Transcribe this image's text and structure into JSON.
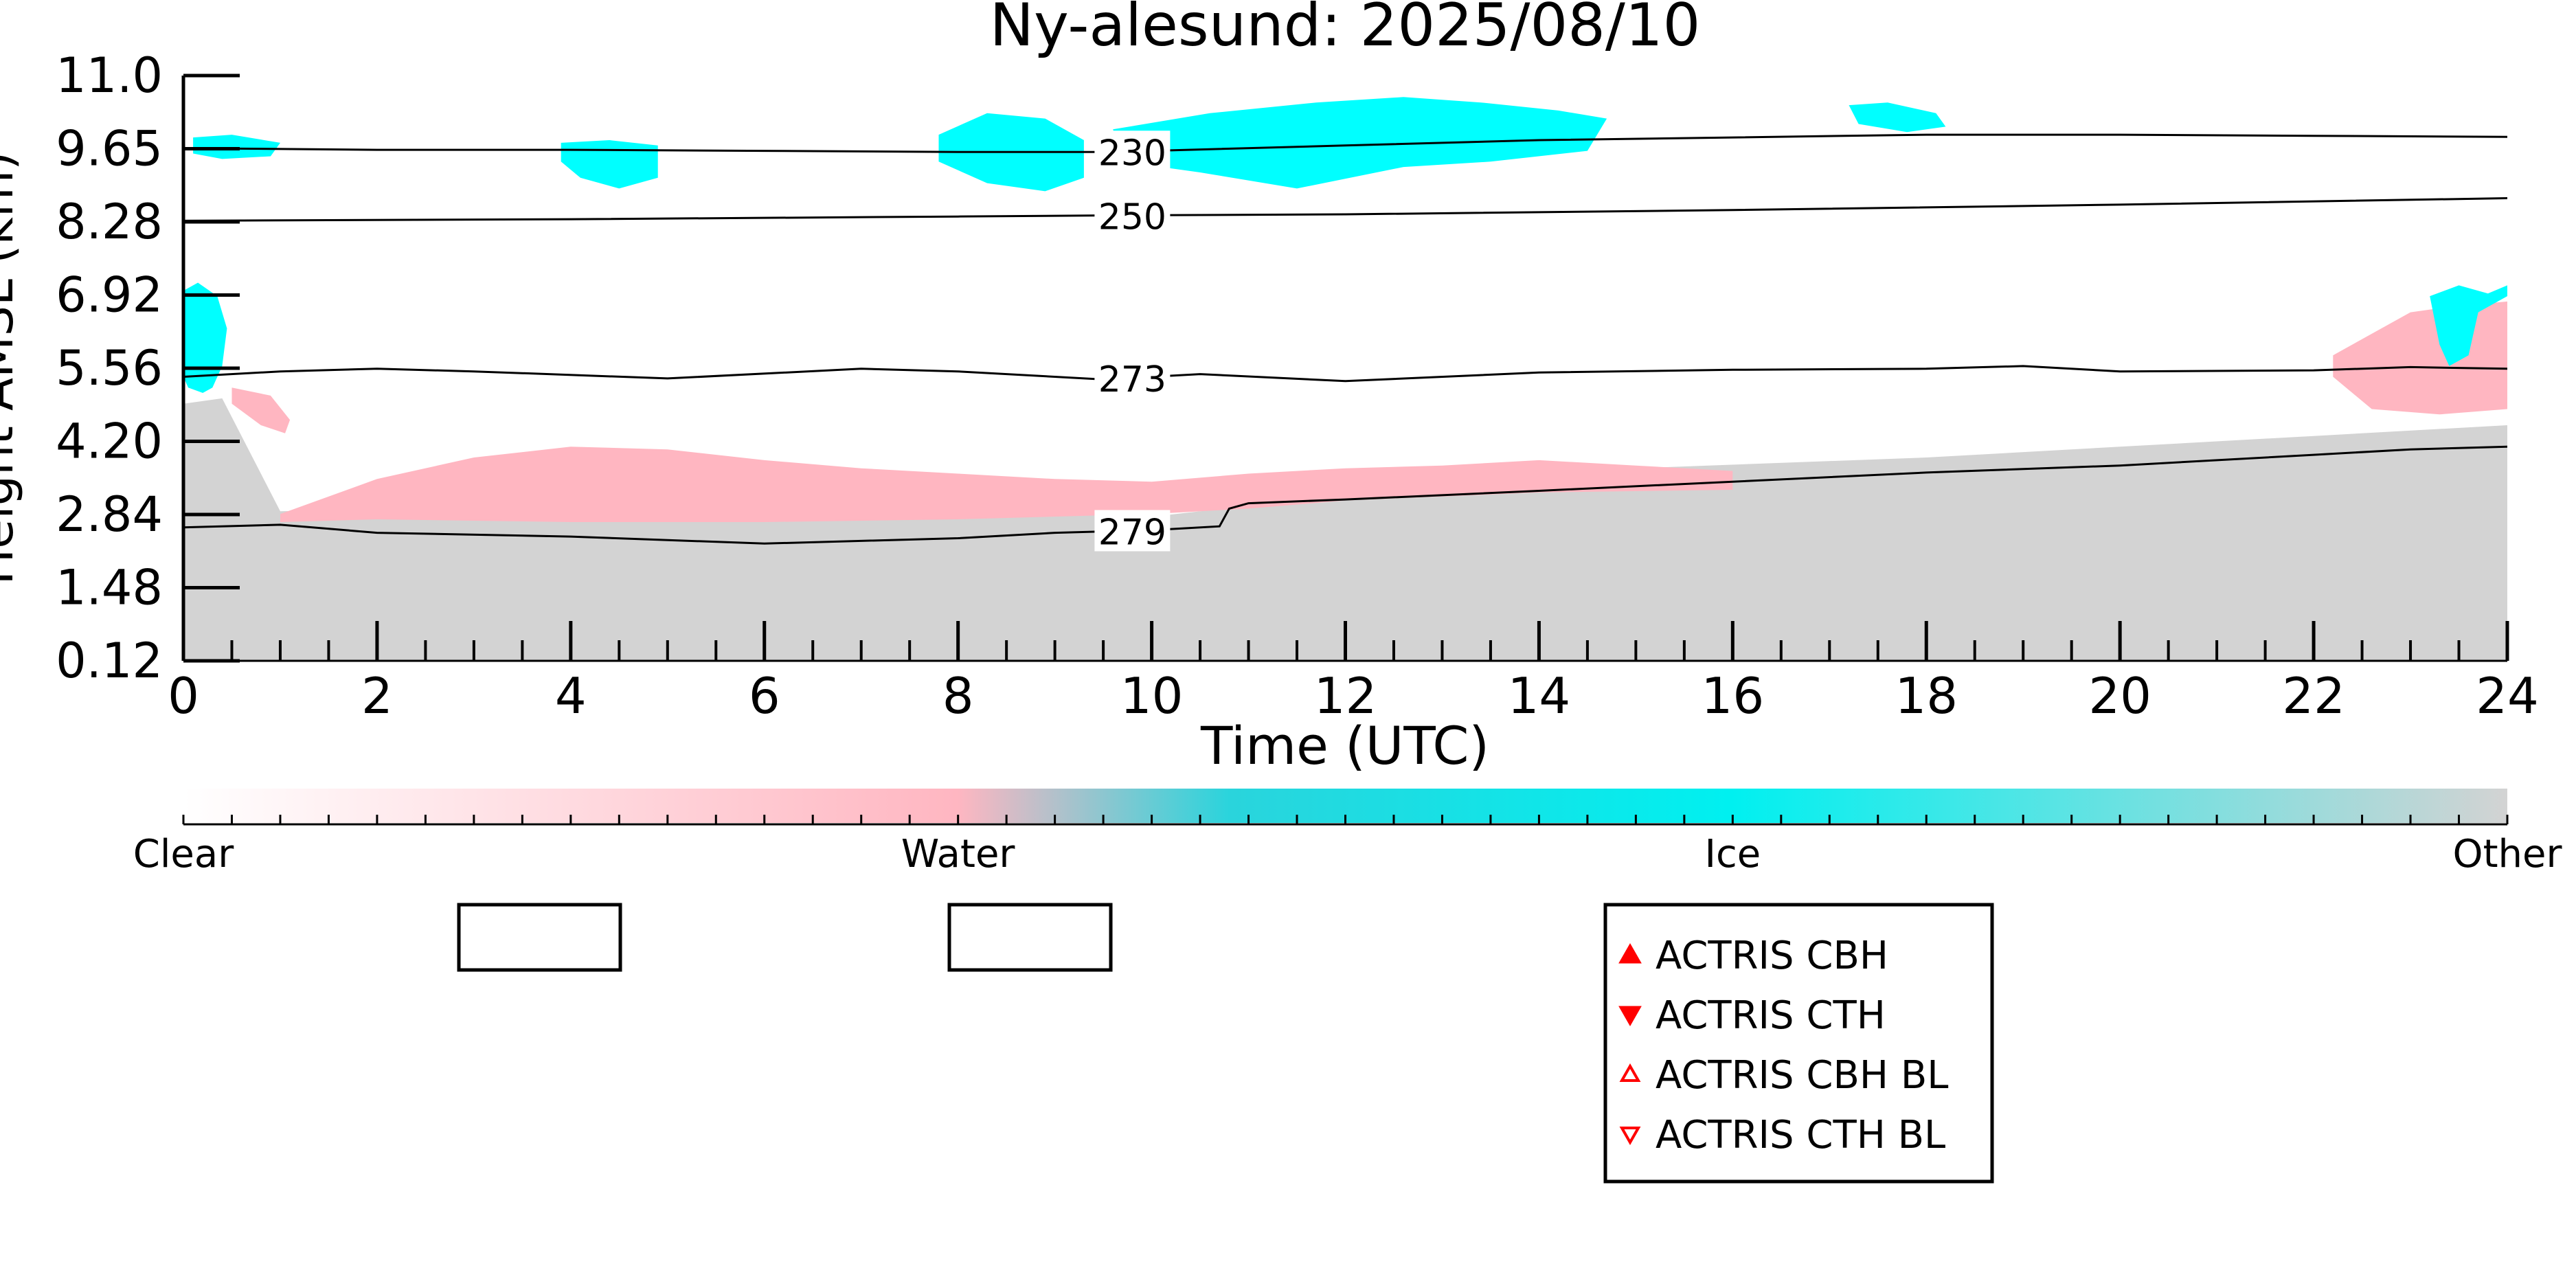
{
  "chart_data": {
    "type": "heatmap",
    "title": "Ny-alesund: 2025/08/10",
    "xlabel": "Time (UTC)",
    "ylabel": "Height AMSL (km)",
    "xlim": [
      0,
      24
    ],
    "ylim": [
      0.12,
      11.0
    ],
    "xticks": [
      "0",
      "2",
      "4",
      "6",
      "8",
      "10",
      "12",
      "14",
      "16",
      "18",
      "20",
      "22",
      "24"
    ],
    "yticks": [
      "0.12",
      "1.48",
      "2.84",
      "4.20",
      "5.56",
      "6.92",
      "8.28",
      "9.65",
      "11.0"
    ],
    "classes": [
      "Clear",
      "Water",
      "Ice",
      "Other"
    ],
    "class_colors": {
      "Clear": "#ffffff",
      "Water": "#ffb6c1",
      "Ice": "#00ffff",
      "Other": "#d3d3d3"
    },
    "colorbar_stops": [
      "#ffffff",
      "#ffb6c1",
      "#2ad4dc",
      "#00f0f0",
      "#d3d3d3"
    ],
    "isotherms": [
      {
        "label": "230",
        "points": [
          [
            0,
            9.65
          ],
          [
            2,
            9.62
          ],
          [
            4,
            9.62
          ],
          [
            6,
            9.6
          ],
          [
            8,
            9.58
          ],
          [
            9.5,
            9.58
          ],
          [
            10,
            9.6
          ],
          [
            12,
            9.7
          ],
          [
            14,
            9.8
          ],
          [
            16,
            9.85
          ],
          [
            18,
            9.9
          ],
          [
            20,
            9.9
          ],
          [
            22,
            9.88
          ],
          [
            24,
            9.86
          ]
        ]
      },
      {
        "label": "250",
        "points": [
          [
            0,
            8.3
          ],
          [
            4,
            8.33
          ],
          [
            8,
            8.38
          ],
          [
            9.5,
            8.4
          ],
          [
            12,
            8.42
          ],
          [
            16,
            8.5
          ],
          [
            20,
            8.6
          ],
          [
            24,
            8.72
          ]
        ]
      },
      {
        "label": "273",
        "points": [
          [
            0,
            5.4
          ],
          [
            1,
            5.5
          ],
          [
            2,
            5.55
          ],
          [
            3,
            5.5
          ],
          [
            5,
            5.37
          ],
          [
            7,
            5.55
          ],
          [
            8,
            5.5
          ],
          [
            9.5,
            5.35
          ],
          [
            10.5,
            5.45
          ],
          [
            12,
            5.32
          ],
          [
            14,
            5.48
          ],
          [
            16,
            5.53
          ],
          [
            18,
            5.55
          ],
          [
            19,
            5.6
          ],
          [
            20,
            5.5
          ],
          [
            22,
            5.52
          ],
          [
            23,
            5.58
          ],
          [
            24,
            5.55
          ]
        ]
      },
      {
        "label": "279",
        "points": [
          [
            0,
            2.6
          ],
          [
            1,
            2.65
          ],
          [
            2,
            2.5
          ],
          [
            4,
            2.43
          ],
          [
            6,
            2.3
          ],
          [
            7,
            2.35
          ],
          [
            8,
            2.4
          ],
          [
            9,
            2.5
          ],
          [
            10,
            2.55
          ],
          [
            10.7,
            2.62
          ],
          [
            10.8,
            2.95
          ],
          [
            11,
            3.05
          ],
          [
            12,
            3.12
          ],
          [
            14,
            3.28
          ],
          [
            16,
            3.45
          ],
          [
            18,
            3.62
          ],
          [
            20,
            3.75
          ],
          [
            22,
            3.95
          ],
          [
            23,
            4.05
          ],
          [
            24,
            4.1
          ]
        ]
      }
    ],
    "regions": [
      {
        "class": "Other",
        "points": [
          [
            0,
            0.12
          ],
          [
            0,
            4.9
          ],
          [
            0.4,
            5.0
          ],
          [
            1,
            2.9
          ],
          [
            4,
            3.0
          ],
          [
            8,
            2.9
          ],
          [
            10,
            2.8
          ],
          [
            11,
            3.0
          ],
          [
            13,
            3.4
          ],
          [
            15,
            3.7
          ],
          [
            18,
            3.9
          ],
          [
            20,
            4.1
          ],
          [
            22,
            4.3
          ],
          [
            24,
            4.5
          ],
          [
            24,
            0.12
          ]
        ]
      },
      {
        "class": "Water",
        "points": [
          [
            1,
            2.85
          ],
          [
            2,
            3.5
          ],
          [
            3,
            3.9
          ],
          [
            4,
            4.1
          ],
          [
            5,
            4.05
          ],
          [
            6,
            3.85
          ],
          [
            7,
            3.7
          ],
          [
            8,
            3.6
          ],
          [
            9,
            3.5
          ],
          [
            10,
            3.45
          ],
          [
            11,
            3.6
          ],
          [
            12,
            3.7
          ],
          [
            13,
            3.75
          ],
          [
            14,
            3.85
          ],
          [
            15,
            3.75
          ],
          [
            16,
            3.65
          ],
          [
            16,
            3.3
          ],
          [
            14,
            3.25
          ],
          [
            12,
            3.1
          ],
          [
            11,
            2.95
          ],
          [
            10,
            2.85
          ],
          [
            8,
            2.75
          ],
          [
            6,
            2.7
          ],
          [
            4,
            2.7
          ],
          [
            2,
            2.75
          ],
          [
            1,
            2.7
          ]
        ]
      },
      {
        "class": "Water",
        "points": [
          [
            0.5,
            5.2
          ],
          [
            0.9,
            5.05
          ],
          [
            1.1,
            4.6
          ],
          [
            1.05,
            4.35
          ],
          [
            0.8,
            4.5
          ],
          [
            0.5,
            4.9
          ]
        ]
      },
      {
        "class": "Water",
        "points": [
          [
            22.2,
            5.8
          ],
          [
            23.0,
            6.6
          ],
          [
            23.4,
            6.7
          ],
          [
            24,
            6.8
          ],
          [
            24,
            4.8
          ],
          [
            23.3,
            4.7
          ],
          [
            22.6,
            4.8
          ],
          [
            22.2,
            5.4
          ]
        ]
      },
      {
        "class": "Ice",
        "points": [
          [
            0.0,
            7.0
          ],
          [
            0.15,
            7.15
          ],
          [
            0.35,
            6.9
          ],
          [
            0.45,
            6.3
          ],
          [
            0.4,
            5.6
          ],
          [
            0.3,
            5.2
          ],
          [
            0.2,
            5.1
          ],
          [
            0.05,
            5.2
          ],
          [
            0,
            5.4
          ]
        ]
      },
      {
        "class": "Ice",
        "points": [
          [
            23.2,
            6.9
          ],
          [
            23.5,
            7.1
          ],
          [
            23.8,
            6.95
          ],
          [
            24,
            7.1
          ],
          [
            24,
            6.9
          ],
          [
            23.7,
            6.6
          ],
          [
            23.6,
            5.8
          ],
          [
            23.4,
            5.6
          ],
          [
            23.3,
            6.0
          ]
        ]
      },
      {
        "class": "Ice",
        "points": [
          [
            0.1,
            9.85
          ],
          [
            0.5,
            9.9
          ],
          [
            1.0,
            9.75
          ],
          [
            0.9,
            9.5
          ],
          [
            0.4,
            9.45
          ],
          [
            0.1,
            9.55
          ]
        ]
      },
      {
        "class": "Ice",
        "points": [
          [
            3.9,
            9.75
          ],
          [
            4.4,
            9.8
          ],
          [
            4.9,
            9.7
          ],
          [
            4.9,
            9.1
          ],
          [
            4.5,
            8.9
          ],
          [
            4.1,
            9.1
          ],
          [
            3.9,
            9.4
          ]
        ]
      },
      {
        "class": "Ice",
        "points": [
          [
            7.8,
            9.9
          ],
          [
            8.3,
            10.3
          ],
          [
            8.9,
            10.2
          ],
          [
            9.3,
            9.8
          ],
          [
            9.3,
            9.1
          ],
          [
            8.9,
            8.85
          ],
          [
            8.3,
            9.0
          ],
          [
            7.8,
            9.4
          ]
        ]
      },
      {
        "class": "Ice",
        "points": [
          [
            9.6,
            10.0
          ],
          [
            10.6,
            10.3
          ],
          [
            11.7,
            10.5
          ],
          [
            12.6,
            10.6
          ],
          [
            13.4,
            10.5
          ],
          [
            14.2,
            10.35
          ],
          [
            14.7,
            10.2
          ],
          [
            14.5,
            9.6
          ],
          [
            13.5,
            9.4
          ],
          [
            12.6,
            9.3
          ],
          [
            11.5,
            8.9
          ],
          [
            10.5,
            9.2
          ],
          [
            9.7,
            9.4
          ]
        ]
      },
      {
        "class": "Ice",
        "points": [
          [
            17.2,
            10.45
          ],
          [
            17.6,
            10.5
          ],
          [
            18.1,
            10.3
          ],
          [
            18.2,
            10.05
          ],
          [
            17.8,
            9.95
          ],
          [
            17.3,
            10.1
          ]
        ]
      }
    ]
  },
  "legend": {
    "items": [
      {
        "label": "ACTRIS CBH",
        "marker": "triangle-up-filled",
        "color": "#ff0000"
      },
      {
        "label": "ACTRIS CTH",
        "marker": "triangle-down-filled",
        "color": "#ff0000"
      },
      {
        "label": "ACTRIS CBH BL",
        "marker": "triangle-up-open",
        "color": "#ff0000"
      },
      {
        "label": "ACTRIS CTH BL",
        "marker": "triangle-down-open",
        "color": "#ff0000"
      }
    ]
  }
}
